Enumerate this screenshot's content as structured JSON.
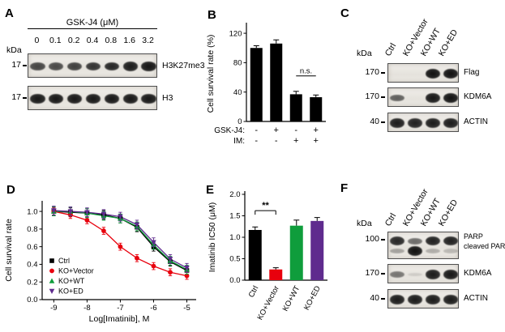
{
  "colors": {
    "ctrl": "#000000",
    "ko_vector": "#e8000d",
    "ko_wt": "#0f9d3c",
    "ko_ed": "#5f2b8e"
  },
  "panels": {
    "A": {
      "label": "A",
      "treatment_title": "GSK-J4 (μM)",
      "kda_label": "kDa",
      "doses": [
        "0",
        "0.1",
        "0.2",
        "0.4",
        "0.8",
        "1.6",
        "3.2"
      ],
      "blots": [
        {
          "marker": "17",
          "label": "H3K27me3",
          "bands": [
            0.72,
            0.7,
            0.74,
            0.8,
            0.86,
            0.9,
            0.93
          ]
        },
        {
          "marker": "17",
          "label": "H3",
          "bands": [
            0.92,
            0.92,
            0.92,
            0.92,
            0.92,
            0.92,
            0.92
          ]
        }
      ]
    },
    "B": {
      "label": "B"
    },
    "C": {
      "label": "C",
      "kda_label": "kDa",
      "lanes": [
        "Ctrl",
        "KO+Vector",
        "KO+WT",
        "KO+ED"
      ],
      "blots": [
        {
          "marker": "170",
          "label": "Flag",
          "bands": [
            0,
            0,
            0.95,
            0.95
          ]
        },
        {
          "marker": "170",
          "label": "KDM6A",
          "bands": [
            0.6,
            0,
            0.92,
            0.94
          ]
        },
        {
          "marker": "40",
          "label": "ACTIN",
          "bands": [
            0.9,
            0.88,
            0.9,
            0.9
          ]
        }
      ]
    },
    "D": {
      "label": "D"
    },
    "E": {
      "label": "E"
    },
    "F": {
      "label": "F",
      "kda_label": "kDa",
      "lanes": [
        "Ctrl",
        "KO+Vector",
        "KO+WT",
        "KO+ED"
      ],
      "blots": [
        {
          "marker": "100",
          "label": "PARP",
          "label2": "cleaved PARP",
          "bands": [
            0.85,
            0.55,
            0.88,
            0.88
          ],
          "bands2": [
            0.3,
            0.95,
            0.25,
            0.2
          ]
        },
        {
          "marker": "170",
          "label": "KDM6A",
          "bands": [
            0.5,
            0.1,
            0.9,
            0.92
          ]
        },
        {
          "marker": "40",
          "label": "ACTIN",
          "bands": [
            0.9,
            0.9,
            0.9,
            0.9
          ]
        }
      ]
    }
  },
  "chart_data": [
    {
      "panel": "B",
      "type": "bar",
      "ylabel": "Cell survival rate (%)",
      "ylim": [
        0,
        130
      ],
      "yticks": [
        0,
        40,
        80,
        120
      ],
      "ytick_labels": [
        "0",
        "40",
        "80",
        "120"
      ],
      "categories": [
        "GSK-J4:- IM:-",
        "GSK-J4:+ IM:-",
        "GSK-J4:- IM:+",
        "GSK-J4:+ IM:+"
      ],
      "values": [
        100,
        106,
        37,
        33
      ],
      "errors": [
        3,
        5,
        4,
        3
      ],
      "bar_color": "#000000",
      "x_rows": [
        {
          "label": "GSK-J4:",
          "signs": [
            "-",
            "+",
            "-",
            "+"
          ]
        },
        {
          "label": "IM:",
          "signs": [
            "-",
            "-",
            "+",
            "+"
          ]
        }
      ],
      "annotation": {
        "text": "n.s.",
        "between": [
          2,
          3
        ],
        "y": 62
      },
      "grid": false
    },
    {
      "panel": "D",
      "type": "line",
      "xlabel": "Log[Imatinib], M",
      "ylabel": "Cell survival rate",
      "xlim": [
        -9.35,
        -4.72
      ],
      "ylim": [
        0,
        1.12
      ],
      "xticks": [
        -9,
        -8,
        -7,
        -6,
        -5
      ],
      "xtick_labels": [
        "-9",
        "-8",
        "-7",
        "-6",
        "-5"
      ],
      "yticks": [
        0,
        0.2,
        0.4,
        0.6,
        0.8,
        1.0
      ],
      "ytick_labels": [
        "0.0",
        "0.2",
        "0.4",
        "0.6",
        "0.8",
        "1.0"
      ],
      "x": [
        -9,
        -8.5,
        -8,
        -7.5,
        -7,
        -6.5,
        -6,
        -5.5,
        -5
      ],
      "series": [
        {
          "name": "Ctrl",
          "color": "#000000",
          "marker": "square",
          "values": [
            1.0,
            0.99,
            0.98,
            0.96,
            0.92,
            0.82,
            0.6,
            0.43,
            0.33
          ],
          "error": 0.05
        },
        {
          "name": "KO+Vector",
          "color": "#e8000d",
          "marker": "circle",
          "values": [
            1.0,
            0.96,
            0.9,
            0.78,
            0.6,
            0.47,
            0.38,
            0.31,
            0.27
          ],
          "error": 0.04
        },
        {
          "name": "KO+WT",
          "color": "#0f9d3c",
          "marker": "triangle-up",
          "values": [
            1.0,
            1.0,
            0.98,
            0.95,
            0.92,
            0.83,
            0.62,
            0.44,
            0.34
          ],
          "error": 0.05
        },
        {
          "name": "KO+ED",
          "color": "#5f2b8e",
          "marker": "triangle-down",
          "values": [
            1.01,
            1.0,
            0.99,
            0.97,
            0.94,
            0.85,
            0.65,
            0.46,
            0.36
          ],
          "error": 0.05
        }
      ],
      "legend": [
        "Ctrl",
        "KO+Vector",
        "KO+WT",
        "KO+ED"
      ],
      "legend_position": "lower-left",
      "grid": false
    },
    {
      "panel": "E",
      "type": "bar",
      "ylabel": "Imatinib IC50 (μM)",
      "ylim": [
        0,
        2.0
      ],
      "yticks": [
        0,
        0.5,
        1.0,
        1.5,
        2.0
      ],
      "ytick_labels": [
        "0.0",
        "0.5",
        "1.0",
        "1.5",
        "2.0"
      ],
      "categories": [
        "Ctrl",
        "KO+Vector",
        "KO+WT",
        "KO+ED"
      ],
      "values": [
        1.17,
        0.25,
        1.27,
        1.38
      ],
      "errors": [
        0.07,
        0.04,
        0.13,
        0.08
      ],
      "colors": [
        "#000000",
        "#e8000d",
        "#0f9d3c",
        "#5f2b8e"
      ],
      "annotation": {
        "text": "**",
        "between": [
          0,
          1
        ],
        "y": 1.62
      },
      "grid": false
    }
  ]
}
